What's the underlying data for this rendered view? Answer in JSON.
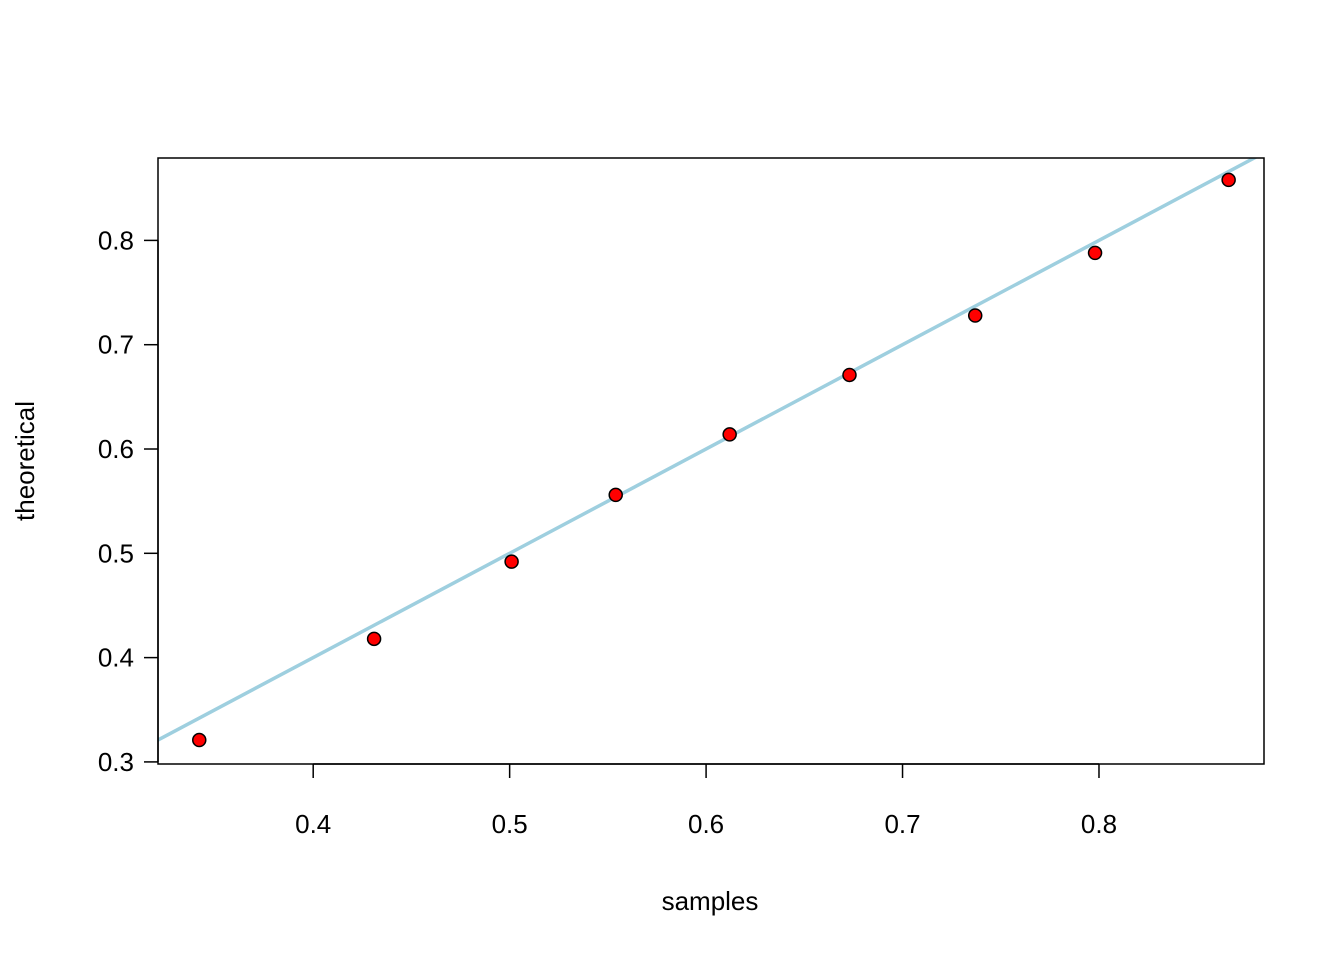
{
  "chart_data": {
    "type": "scatter",
    "title": "",
    "xlabel": "samples",
    "ylabel": "theoretical",
    "xlim": [
      0.321,
      0.884
    ],
    "ylim": [
      0.298,
      0.879
    ],
    "x_ticks": [
      0.4,
      0.5,
      0.6,
      0.7,
      0.8
    ],
    "x_tick_labels": [
      "0.4",
      "0.5",
      "0.6",
      "0.7",
      "0.8"
    ],
    "y_ticks": [
      0.3,
      0.4,
      0.5,
      0.6,
      0.7,
      0.8
    ],
    "y_tick_labels": [
      "0.3",
      "0.4",
      "0.5",
      "0.6",
      "0.7",
      "0.8"
    ],
    "grid": false,
    "legend": "none",
    "series": [
      {
        "x": [
          0.342,
          0.431,
          0.501,
          0.554,
          0.612,
          0.673,
          0.737,
          0.798,
          0.866
        ],
        "y": [
          0.321,
          0.418,
          0.492,
          0.556,
          0.614,
          0.671,
          0.728,
          0.788,
          0.858
        ],
        "marker": "circle",
        "fill_color": "#ff0000",
        "edge_color": "#000000"
      }
    ],
    "reference_line": {
      "type": "identity",
      "slope": 1,
      "intercept": 0,
      "color": "#9ecfdf"
    }
  }
}
